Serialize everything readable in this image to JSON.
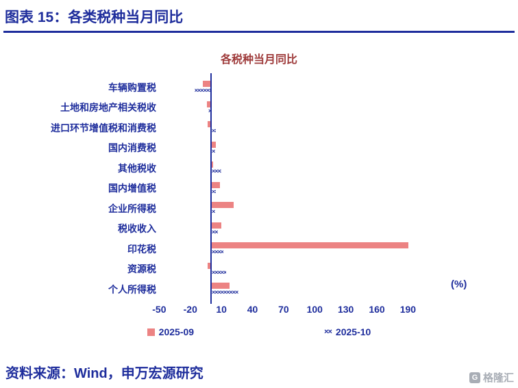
{
  "page": {
    "figure_title": "图表 15：各类税种当月同比",
    "source_note": "资料来源：Wind，申万宏源研究",
    "watermark": "格隆汇",
    "watermark_icon": "G"
  },
  "chart_data": {
    "type": "bar",
    "orientation": "horizontal",
    "title": "各税种当月同比",
    "unit_label": "(%)",
    "categories": [
      "车辆购置税",
      "土地和房地产相关税收",
      "进口环节增值税和消费税",
      "国内消费税",
      "其他税收",
      "国内增值税",
      "企业所得税",
      "税收收入",
      "印花税",
      "资源税",
      "个人所得税"
    ],
    "series": [
      {
        "name": "2025-09",
        "style": "solid",
        "values": [
          -8,
          -4,
          -3,
          4,
          1,
          8,
          21,
          9,
          190,
          -3,
          17
        ]
      },
      {
        "name": "2025-10",
        "style": "x-pattern",
        "values": [
          -16,
          -2,
          4,
          3,
          9,
          4,
          3,
          6,
          11,
          14,
          28
        ]
      }
    ],
    "x_ticks": [
      -50,
      -20,
      10,
      40,
      70,
      100,
      130,
      160,
      190
    ],
    "xlim": [
      -60,
      205
    ],
    "legend_position": "bottom",
    "grid": false
  },
  "colors": {
    "navy": "#1E2D9C",
    "bar_red": "#EC8383",
    "chart_title_red": "#9E3A3A",
    "watermark_gray": "#A8ADB5"
  }
}
